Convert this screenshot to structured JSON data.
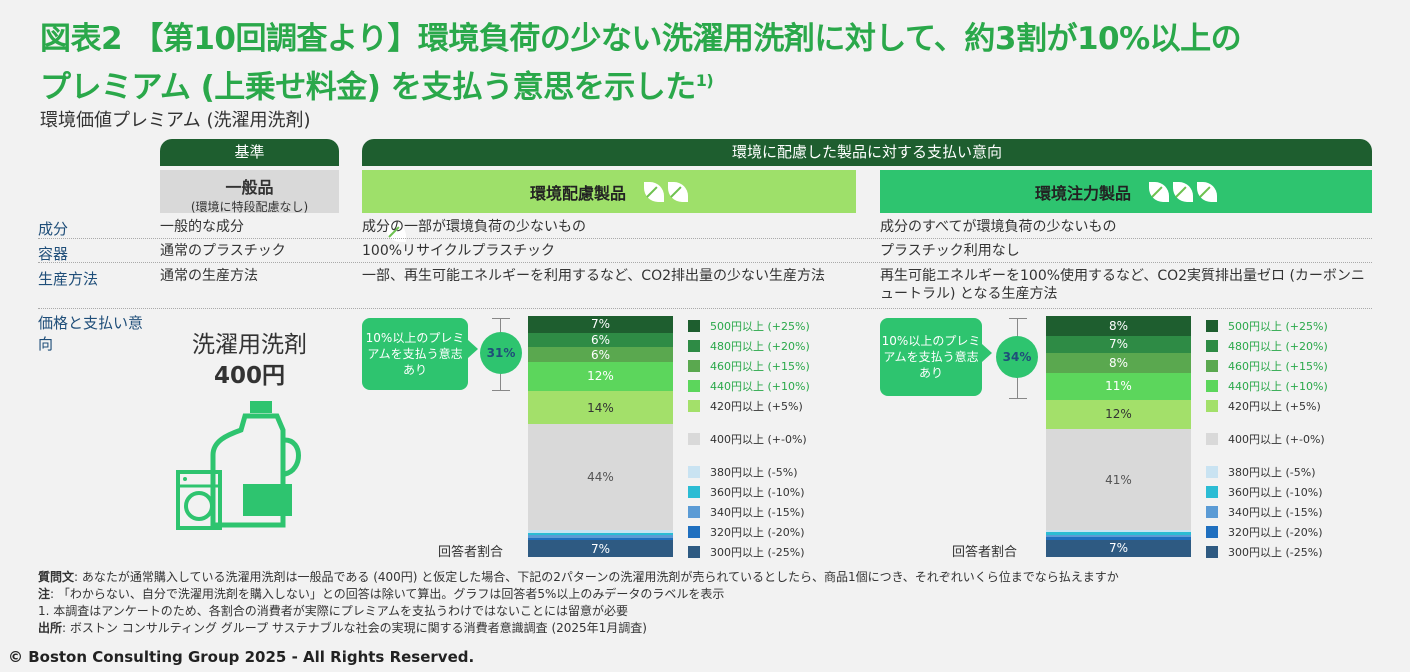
{
  "title": {
    "line1": "図表2 【第10回調査より】環境負荷の少ない洗濯用洗剤に対して、約3割が10%以上の",
    "line2": "プレミアム (上乗せ料金) を支払う意思を示した",
    "footnote_mark": "1)"
  },
  "subtitle": "環境価値プレミアム (洗濯用洗剤)",
  "headers": {
    "baseline": "基準",
    "willingness": "環境に配慮した製品に対する支払い意向",
    "general_product": "一般品",
    "general_product_sub": "(環境に特段配慮なし)",
    "eco_product": "環境配慮製品",
    "eco_focus_product": "環境注力製品"
  },
  "rows": [
    {
      "label": "成分",
      "general": "一般的な成分",
      "eco": "成分の一部が環境負荷の少ないもの",
      "focus": "成分のすべてが環境負荷の少ないもの"
    },
    {
      "label": "容器",
      "general": "通常のプラスチック",
      "eco": "100%リサイクルプラスチック",
      "focus": "プラスチック利用なし"
    },
    {
      "label": "生産方法",
      "general": "通常の生産方法",
      "eco": "一部、再生可能エネルギーを利用するなど、CO2排出量の少ない生産方法",
      "focus": "再生可能エネルギーを100%使用するなど、CO2実質排出量ゼロ (カーボンニュートラル) となる生産方法"
    }
  ],
  "price_label": "価格と支払い意向",
  "product_name": "洗濯用洗剤",
  "product_price": "400円",
  "respondent_label": "回答者割合",
  "colors": {
    "title_green": "#2aa84a",
    "header_dark": "#1e5e2f",
    "eco_band": "#9ee06a",
    "focus_band": "#2ec46f",
    "gray_band": "#d9d9d9",
    "label_blue": "#1f4e79"
  },
  "chart_data": [
    {
      "type": "stacked-bar",
      "product": "環境配慮製品",
      "callout": "10%以上のプレミアムを支払う意志あり",
      "premium_total": "31%",
      "categories": [
        "500円以上 (+25%)",
        "480円以上 (+20%)",
        "460円以上 (+15%)",
        "440円以上 (+10%)",
        "420円以上 (+5%)",
        "400円以上 (+-0%)",
        "380円以上 (-5%)",
        "360円以上 (-10%)",
        "340円以上 (-15%)",
        "320円以上 (-20%)",
        "300円以上 (-25%)"
      ],
      "values": [
        7,
        6,
        6,
        12,
        14,
        44,
        1,
        1,
        1,
        1,
        7
      ],
      "labels": [
        "7%",
        "6%",
        "6%",
        "12%",
        "14%",
        "44%",
        "",
        "",
        "",
        "",
        "7%"
      ]
    },
    {
      "type": "stacked-bar",
      "product": "環境注力製品",
      "callout": "10%以上のプレミアムを支払う意志あり",
      "premium_total": "34%",
      "categories": [
        "500円以上 (+25%)",
        "480円以上 (+20%)",
        "460円以上 (+15%)",
        "440円以上 (+10%)",
        "420円以上 (+5%)",
        "400円以上 (+-0%)",
        "380円以上 (-5%)",
        "360円以上 (-10%)",
        "340円以上 (-15%)",
        "320円以上 (-20%)",
        "300円以上 (-25%)"
      ],
      "values": [
        8,
        7,
        8,
        11,
        12,
        41,
        1,
        1,
        1,
        1,
        7
      ],
      "labels": [
        "8%",
        "7%",
        "8%",
        "11%",
        "12%",
        "41%",
        "",
        "",
        "",
        "",
        "7%"
      ]
    }
  ],
  "segment_colors": [
    "#1e5e2f",
    "#2e8b45",
    "#5aa84f",
    "#5cd65c",
    "#a3e06a",
    "#d9d9d9",
    "#c9e3f2",
    "#2bbcd4",
    "#5b9bd5",
    "#1f6fbf",
    "#2e5a82"
  ],
  "segment_text_colors": [
    "#ffffff",
    "#ffffff",
    "#ffffff",
    "#ffffff",
    "#333333",
    "#555555",
    "#333",
    "#333",
    "#333",
    "#333",
    "#ffffff"
  ],
  "legend_text_colors": [
    "#2aa84a",
    "#2aa84a",
    "#2aa84a",
    "#2aa84a",
    "#333333",
    "#333333",
    "#333333",
    "#333333",
    "#333333",
    "#333333",
    "#333333"
  ],
  "notes": {
    "question_label": "質問文",
    "question": ": あなたが通常購入している洗濯用洗剤は一般品である (400円) と仮定した場合、下記の2パターンの洗濯用洗剤が売られているとしたら、商品1個につき、それぞれいくら位までなら払えますか",
    "note_label": "注",
    "note": ": 「わからない、自分で洗濯用洗剤を購入しない」との回答は除いて算出。グラフは回答者5%以上のみデータのラベルを表示",
    "footnote": "1. 本調査はアンケートのため、各割合の消費者が実際にプレミアムを支払うわけではないことには留意が必要",
    "source_label": "出所",
    "source": ": ボストン コンサルティング グループ サステナブルな社会の実現に関する消費者意識調査 (2025年1月調査)"
  },
  "copyright": "© Boston Consulting Group 2025 - All Rights Reserved."
}
